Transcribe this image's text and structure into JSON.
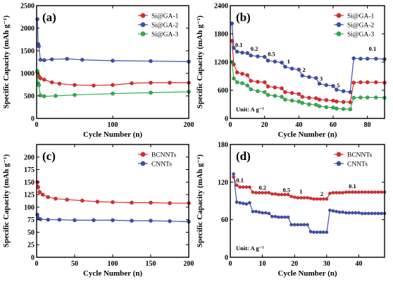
{
  "chart_data": [
    {
      "panel": "(a)",
      "type": "scatter",
      "xlabel": "Cycle Number (n)",
      "ylabel": "Specific Capacity (mAh g⁻¹)",
      "xlim": [
        0,
        200
      ],
      "ylim": [
        0,
        2500
      ],
      "xticks": [
        0,
        100,
        200
      ],
      "yticks": [
        0,
        500,
        1000,
        1500,
        2000,
        2500
      ],
      "legend_position": "top-right",
      "series": [
        {
          "name": "Si@GA-1",
          "color": "#e8262a",
          "points": [
            [
              1,
              1020
            ],
            [
              2,
              960
            ],
            [
              3,
              930
            ],
            [
              5,
              890
            ],
            [
              10,
              860
            ],
            [
              20,
              800
            ],
            [
              30,
              770
            ],
            [
              50,
              740
            ],
            [
              75,
              730
            ],
            [
              100,
              740
            ],
            [
              125,
              780
            ],
            [
              150,
              790
            ],
            [
              175,
              790
            ],
            [
              200,
              790
            ]
          ]
        },
        {
          "name": "Si@GA-2",
          "color": "#3c4eb5",
          "points": [
            [
              1,
              2200
            ],
            [
              2,
              1650
            ],
            [
              3,
              1600
            ],
            [
              5,
              1300
            ],
            [
              10,
              1290
            ],
            [
              20,
              1310
            ],
            [
              40,
              1320
            ],
            [
              60,
              1300
            ],
            [
              100,
              1280
            ],
            [
              150,
              1270
            ],
            [
              200,
              1260
            ]
          ]
        },
        {
          "name": "Si@GA-3",
          "color": "#2bb24c",
          "points": [
            [
              1,
              1050
            ],
            [
              2,
              780
            ],
            [
              3,
              740
            ],
            [
              5,
              510
            ],
            [
              10,
              490
            ],
            [
              25,
              500
            ],
            [
              50,
              520
            ],
            [
              100,
              550
            ],
            [
              150,
              570
            ],
            [
              200,
              590
            ]
          ]
        }
      ]
    },
    {
      "panel": "(b)",
      "type": "scatter",
      "xlabel": "Cycle Number (n)",
      "ylabel": "Specific Capacity (mAh g⁻¹)",
      "xlim": [
        0,
        90
      ],
      "ylim": [
        0,
        2400
      ],
      "xticks": [
        0,
        20,
        40,
        60,
        80
      ],
      "yticks": [
        0,
        600,
        1200,
        1800,
        2400
      ],
      "legend_position": "top-right",
      "unit_note": "Unit: A g⁻¹",
      "rate_labels": [
        {
          "text": "0.1",
          "x": 5,
          "y": 1520
        },
        {
          "text": "0.2",
          "x": 14,
          "y": 1440
        },
        {
          "text": "0.5",
          "x": 24,
          "y": 1330
        },
        {
          "text": "1",
          "x": 34,
          "y": 1170
        },
        {
          "text": "2",
          "x": 43,
          "y": 990
        },
        {
          "text": "3",
          "x": 53,
          "y": 800
        },
        {
          "text": "5",
          "x": 63,
          "y": 660
        },
        {
          "text": "0.1",
          "x": 83,
          "y": 1440
        }
      ],
      "series": [
        {
          "name": "Si@GA-1",
          "color": "#e8262a",
          "points": [
            [
              1,
              1650
            ],
            [
              2,
              1150
            ],
            [
              4,
              980
            ],
            [
              7,
              950
            ],
            [
              10,
              920
            ],
            [
              12,
              800
            ],
            [
              16,
              780
            ],
            [
              20,
              770
            ],
            [
              22,
              680
            ],
            [
              26,
              660
            ],
            [
              30,
              640
            ],
            [
              32,
              560
            ],
            [
              36,
              540
            ],
            [
              40,
              520
            ],
            [
              42,
              460
            ],
            [
              46,
              440
            ],
            [
              50,
              430
            ],
            [
              52,
              400
            ],
            [
              56,
              390
            ],
            [
              60,
              380
            ],
            [
              62,
              360
            ],
            [
              66,
              350
            ],
            [
              70,
              345
            ],
            [
              72,
              760
            ],
            [
              76,
              770
            ],
            [
              80,
              770
            ],
            [
              85,
              770
            ],
            [
              90,
              760
            ]
          ]
        },
        {
          "name": "Si@GA-2",
          "color": "#3c4eb5",
          "points": [
            [
              1,
              2020
            ],
            [
              2,
              1500
            ],
            [
              4,
              1420
            ],
            [
              7,
              1400
            ],
            [
              10,
              1390
            ],
            [
              12,
              1340
            ],
            [
              16,
              1320
            ],
            [
              20,
              1310
            ],
            [
              22,
              1230
            ],
            [
              26,
              1210
            ],
            [
              30,
              1190
            ],
            [
              32,
              1100
            ],
            [
              36,
              1060
            ],
            [
              40,
              1040
            ],
            [
              42,
              910
            ],
            [
              46,
              880
            ],
            [
              50,
              860
            ],
            [
              52,
              740
            ],
            [
              56,
              710
            ],
            [
              60,
              690
            ],
            [
              62,
              610
            ],
            [
              66,
              580
            ],
            [
              70,
              560
            ],
            [
              72,
              1280
            ],
            [
              76,
              1270
            ],
            [
              80,
              1270
            ],
            [
              85,
              1270
            ],
            [
              90,
              1260
            ]
          ]
        },
        {
          "name": "Si@GA-3",
          "color": "#2bb24c",
          "points": [
            [
              1,
              1200
            ],
            [
              2,
              850
            ],
            [
              4,
              770
            ],
            [
              7,
              750
            ],
            [
              10,
              700
            ],
            [
              12,
              620
            ],
            [
              16,
              580
            ],
            [
              20,
              560
            ],
            [
              22,
              500
            ],
            [
              26,
              480
            ],
            [
              30,
              460
            ],
            [
              32,
              400
            ],
            [
              36,
              380
            ],
            [
              40,
              360
            ],
            [
              42,
              330
            ],
            [
              46,
              300
            ],
            [
              50,
              290
            ],
            [
              52,
              260
            ],
            [
              56,
              240
            ],
            [
              60,
              230
            ],
            [
              62,
              210
            ],
            [
              66,
              200
            ],
            [
              70,
              195
            ],
            [
              72,
              440
            ],
            [
              76,
              445
            ],
            [
              80,
              445
            ],
            [
              85,
              445
            ],
            [
              90,
              440
            ]
          ]
        }
      ]
    },
    {
      "panel": "(c)",
      "type": "scatter",
      "xlabel": "Cycle Number (n)",
      "ylabel": "Specific Capacity (mAh g⁻¹)",
      "xlim": [
        0,
        200
      ],
      "ylim": [
        0,
        225
      ],
      "xticks": [
        0,
        50,
        100,
        150,
        200
      ],
      "yticks": [
        0,
        25,
        50,
        75,
        100,
        125,
        150,
        175,
        200
      ],
      "legend_position": "top-right",
      "series": [
        {
          "name": "BCNNTs",
          "color": "#e8262a",
          "points": [
            [
              1,
              150
            ],
            [
              2,
              140
            ],
            [
              4,
              130
            ],
            [
              8,
              125
            ],
            [
              15,
              120
            ],
            [
              25,
              117
            ],
            [
              40,
              115
            ],
            [
              60,
              113
            ],
            [
              80,
              111
            ],
            [
              100,
              110
            ],
            [
              125,
              109
            ],
            [
              150,
              109
            ],
            [
              175,
              108
            ],
            [
              200,
              108
            ]
          ]
        },
        {
          "name": "CNNTs",
          "color": "#3c4eb5",
          "points": [
            [
              1,
              85
            ],
            [
              2,
              78
            ],
            [
              5,
              76
            ],
            [
              15,
              75
            ],
            [
              30,
              75
            ],
            [
              50,
              74
            ],
            [
              75,
              74
            ],
            [
              100,
              74
            ],
            [
              125,
              73
            ],
            [
              150,
              73
            ],
            [
              175,
              72
            ],
            [
              200,
              71
            ]
          ]
        }
      ]
    },
    {
      "panel": "(d)",
      "type": "scatter",
      "xlabel": "Cycle Number (n)",
      "ylabel": "Specific Capacity (mAh g⁻¹)",
      "xlim": [
        0,
        48
      ],
      "ylim": [
        0,
        180
      ],
      "xticks": [
        0,
        10,
        20,
        30,
        40
      ],
      "yticks": [
        0,
        60,
        120,
        180
      ],
      "legend_position": "top-right",
      "unit_note": "Unit: A g⁻¹",
      "rate_labels": [
        {
          "text": "0.1",
          "x": 3,
          "y": 120
        },
        {
          "text": "0.2",
          "x": 10,
          "y": 108
        },
        {
          "text": "0.5",
          "x": 17.5,
          "y": 104
        },
        {
          "text": "1",
          "x": 22,
          "y": 102
        },
        {
          "text": "2",
          "x": 28.5,
          "y": 98
        },
        {
          "text": "0.1",
          "x": 38,
          "y": 110
        }
      ],
      "series": [
        {
          "name": "BCNNTs",
          "color": "#e8262a",
          "points": [
            [
              1,
              128
            ],
            [
              2,
              115
            ],
            [
              3,
              112
            ],
            [
              4,
              112
            ],
            [
              5,
              112
            ],
            [
              6,
              112
            ],
            [
              7,
              104
            ],
            [
              8,
              103
            ],
            [
              9,
              103
            ],
            [
              10,
              103
            ],
            [
              11,
              103
            ],
            [
              12,
              103
            ],
            [
              13,
              101
            ],
            [
              14,
              101
            ],
            [
              15,
              100
            ],
            [
              16,
              100
            ],
            [
              17,
              100
            ],
            [
              18,
              100
            ],
            [
              19,
              97
            ],
            [
              20,
              96
            ],
            [
              21,
              95
            ],
            [
              22,
              95
            ],
            [
              23,
              95
            ],
            [
              24,
              95
            ],
            [
              25,
              94
            ],
            [
              26,
              93
            ],
            [
              27,
              93
            ],
            [
              28,
              93
            ],
            [
              29,
              93
            ],
            [
              30,
              93
            ],
            [
              31,
              102
            ],
            [
              32,
              103
            ],
            [
              33,
              103
            ],
            [
              34,
              103
            ],
            [
              35,
              103
            ],
            [
              36,
              104
            ],
            [
              37,
              104
            ],
            [
              38,
              104
            ],
            [
              39,
              104
            ],
            [
              40,
              104
            ],
            [
              41,
              104
            ],
            [
              42,
              104
            ],
            [
              43,
              104
            ],
            [
              44,
              104
            ],
            [
              45,
              104
            ],
            [
              46,
              104
            ],
            [
              47,
              104
            ],
            [
              48,
              104
            ]
          ]
        },
        {
          "name": "CNNTs",
          "color": "#3c4eb5",
          "points": [
            [
              1,
              133
            ],
            [
              2,
              88
            ],
            [
              3,
              87
            ],
            [
              4,
              86
            ],
            [
              5,
              85
            ],
            [
              6,
              87
            ],
            [
              7,
              73
            ],
            [
              8,
              73
            ],
            [
              9,
              72
            ],
            [
              10,
              71
            ],
            [
              11,
              71
            ],
            [
              12,
              70
            ],
            [
              13,
              65
            ],
            [
              14,
              65
            ],
            [
              15,
              64
            ],
            [
              16,
              64
            ],
            [
              17,
              64
            ],
            [
              18,
              64
            ],
            [
              19,
              52
            ],
            [
              20,
              52
            ],
            [
              21,
              52
            ],
            [
              22,
              52
            ],
            [
              23,
              52
            ],
            [
              24,
              52
            ],
            [
              25,
              41
            ],
            [
              26,
              40
            ],
            [
              27,
              40
            ],
            [
              28,
              40
            ],
            [
              29,
              40
            ],
            [
              30,
              40
            ],
            [
              31,
              75
            ],
            [
              32,
              74
            ],
            [
              33,
              73
            ],
            [
              34,
              72
            ],
            [
              35,
              72
            ],
            [
              36,
              71
            ],
            [
              37,
              71
            ],
            [
              38,
              71
            ],
            [
              39,
              71
            ],
            [
              40,
              71
            ],
            [
              41,
              70
            ],
            [
              42,
              70
            ],
            [
              43,
              70
            ],
            [
              44,
              70
            ],
            [
              45,
              70
            ],
            [
              46,
              70
            ],
            [
              47,
              70
            ],
            [
              48,
              70
            ]
          ]
        }
      ]
    }
  ]
}
